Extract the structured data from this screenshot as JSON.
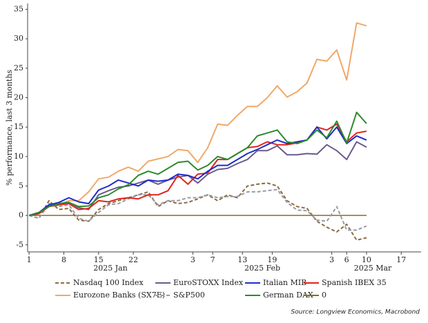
{
  "chart_data": {
    "type": "line",
    "y_label": "% performance, last 3 months",
    "month_labels": [
      "2025 Jan",
      "2025 Feb",
      "2025 Mar"
    ],
    "source": "Source: Longview Economics, Macrobond",
    "x": [
      1,
      3,
      5,
      7,
      9,
      11,
      13,
      15,
      17,
      19,
      21,
      23,
      25,
      27,
      29,
      31,
      33,
      35,
      37,
      39,
      41,
      43,
      45,
      47,
      49,
      51,
      53,
      55,
      57,
      59,
      61,
      63,
      65,
      67,
      69
    ],
    "xlim": [
      0.7,
      80
    ],
    "xticks": [
      {
        "value": 1,
        "label": "1"
      },
      {
        "value": 8,
        "label": "8"
      },
      {
        "value": 15,
        "label": "15"
      },
      {
        "value": 22,
        "label": "22"
      },
      {
        "value": 34,
        "label": "3"
      },
      {
        "value": 38,
        "label": "7"
      },
      {
        "value": 44,
        "label": "13"
      },
      {
        "value": 50,
        "label": "19"
      },
      {
        "value": 62,
        "label": "3"
      },
      {
        "value": 65,
        "label": "6"
      },
      {
        "value": 69,
        "label": "10"
      },
      {
        "value": 76,
        "label": "17"
      }
    ],
    "ylim": [
      -6.2,
      36
    ],
    "yticks": [
      -5,
      0,
      5,
      10,
      15,
      20,
      25,
      30,
      35
    ],
    "grid": false,
    "series": [
      {
        "name": "Nasdaq 100 Index",
        "color": "#8b6b3d",
        "dashed": true,
        "values": [
          0,
          -0.5,
          2.5,
          1,
          1.2,
          -0.8,
          -1,
          1,
          2,
          2.5,
          3,
          3.5,
          4,
          1.5,
          2.5,
          2,
          2.2,
          2.8,
          3.5,
          2.5,
          3.5,
          3,
          5,
          5.3,
          5.5,
          5,
          2.5,
          1.5,
          1.2,
          -1,
          -2,
          -2.8,
          -1.5,
          -4.2,
          -3.8
        ]
      },
      {
        "name": "EuroSTOXX Index",
        "color": "#6a5a8c",
        "dashed": false,
        "values": [
          0,
          0.3,
          1.6,
          2,
          2.2,
          1.3,
          1,
          3.5,
          4.2,
          4.8,
          5,
          5.5,
          6,
          5.3,
          6,
          6.5,
          6.8,
          5.5,
          7,
          7.8,
          8,
          8.8,
          9.5,
          11,
          11,
          11.8,
          10.3,
          10.3,
          10.5,
          10.4,
          12,
          11,
          9.5,
          12.5,
          11.6
        ]
      },
      {
        "name": "Italian MIB",
        "color": "#1f2bcc",
        "dashed": false,
        "values": [
          0,
          0.5,
          1.8,
          2.2,
          3,
          2.3,
          2,
          4.3,
          5,
          6,
          5.5,
          5,
          6,
          5.8,
          6,
          7,
          6.8,
          6.2,
          7.5,
          8.5,
          8.5,
          9.5,
          10.5,
          11.2,
          12,
          12.8,
          12.2,
          12.5,
          12.8,
          15,
          13,
          15,
          12.2,
          13.5,
          12.8
        ]
      },
      {
        "name": "Spanish IBEX 35",
        "color": "#e0231c",
        "dashed": false,
        "values": [
          0,
          0.3,
          1.5,
          1.8,
          2,
          1,
          1.2,
          2.5,
          2.3,
          2.8,
          3,
          2.8,
          3.5,
          3.5,
          4.2,
          6.8,
          5.3,
          7,
          7.2,
          9.5,
          9.5,
          10.5,
          11.5,
          11.7,
          12.5,
          12,
          12,
          12.3,
          12.8,
          15,
          14.5,
          15.5,
          12.5,
          14,
          14.3
        ]
      },
      {
        "name": "Eurozone Banks (SX7E)",
        "color": "#f0a868",
        "dashed": false,
        "values": [
          0,
          0.5,
          1.5,
          1.8,
          2.5,
          2.5,
          4,
          6.2,
          6.5,
          7.5,
          8.2,
          7.5,
          9.2,
          9.6,
          10,
          11.2,
          11,
          9,
          11.5,
          15.5,
          15.3,
          17,
          18.5,
          18.5,
          20,
          22,
          20.1,
          21,
          22.5,
          26.5,
          26.2,
          28.1,
          23,
          32.7,
          32.2
        ]
      },
      {
        "name": "S&P500",
        "color": "#9a9aa8",
        "dashed": true,
        "values": [
          0,
          -0.5,
          2,
          1.5,
          1.8,
          -0.5,
          -1,
          0.5,
          1.8,
          2,
          2.8,
          3.5,
          3.5,
          1.8,
          2.5,
          2.5,
          3,
          3,
          3.5,
          3,
          3.2,
          3.2,
          4,
          4,
          4.2,
          4.4,
          2.2,
          0.9,
          0.8,
          -0.8,
          -1,
          1.5,
          -2.5,
          -2.5,
          -1.8
        ]
      },
      {
        "name": "German DAX",
        "color": "#2a8a2a",
        "dashed": false,
        "values": [
          0,
          0.5,
          1.5,
          2,
          2.2,
          1.5,
          1.6,
          3,
          3.5,
          4.5,
          5.2,
          6.8,
          7.5,
          7,
          8,
          9,
          9.2,
          7.7,
          8.5,
          10,
          9.5,
          10.5,
          11.5,
          13.5,
          14,
          14.5,
          12.5,
          12.2,
          12.8,
          14.5,
          13.2,
          16,
          12.3,
          17.5,
          15.6
        ]
      },
      {
        "name": "0",
        "color": "#8b6b1a",
        "dashed": false,
        "values": [
          0,
          0,
          0,
          0,
          0,
          0,
          0,
          0,
          0,
          0,
          0,
          0,
          0,
          0,
          0,
          0,
          0,
          0,
          0,
          0,
          0,
          0,
          0,
          0,
          0,
          0,
          0,
          0,
          0,
          0,
          0,
          0,
          0,
          0,
          0
        ]
      }
    ]
  }
}
